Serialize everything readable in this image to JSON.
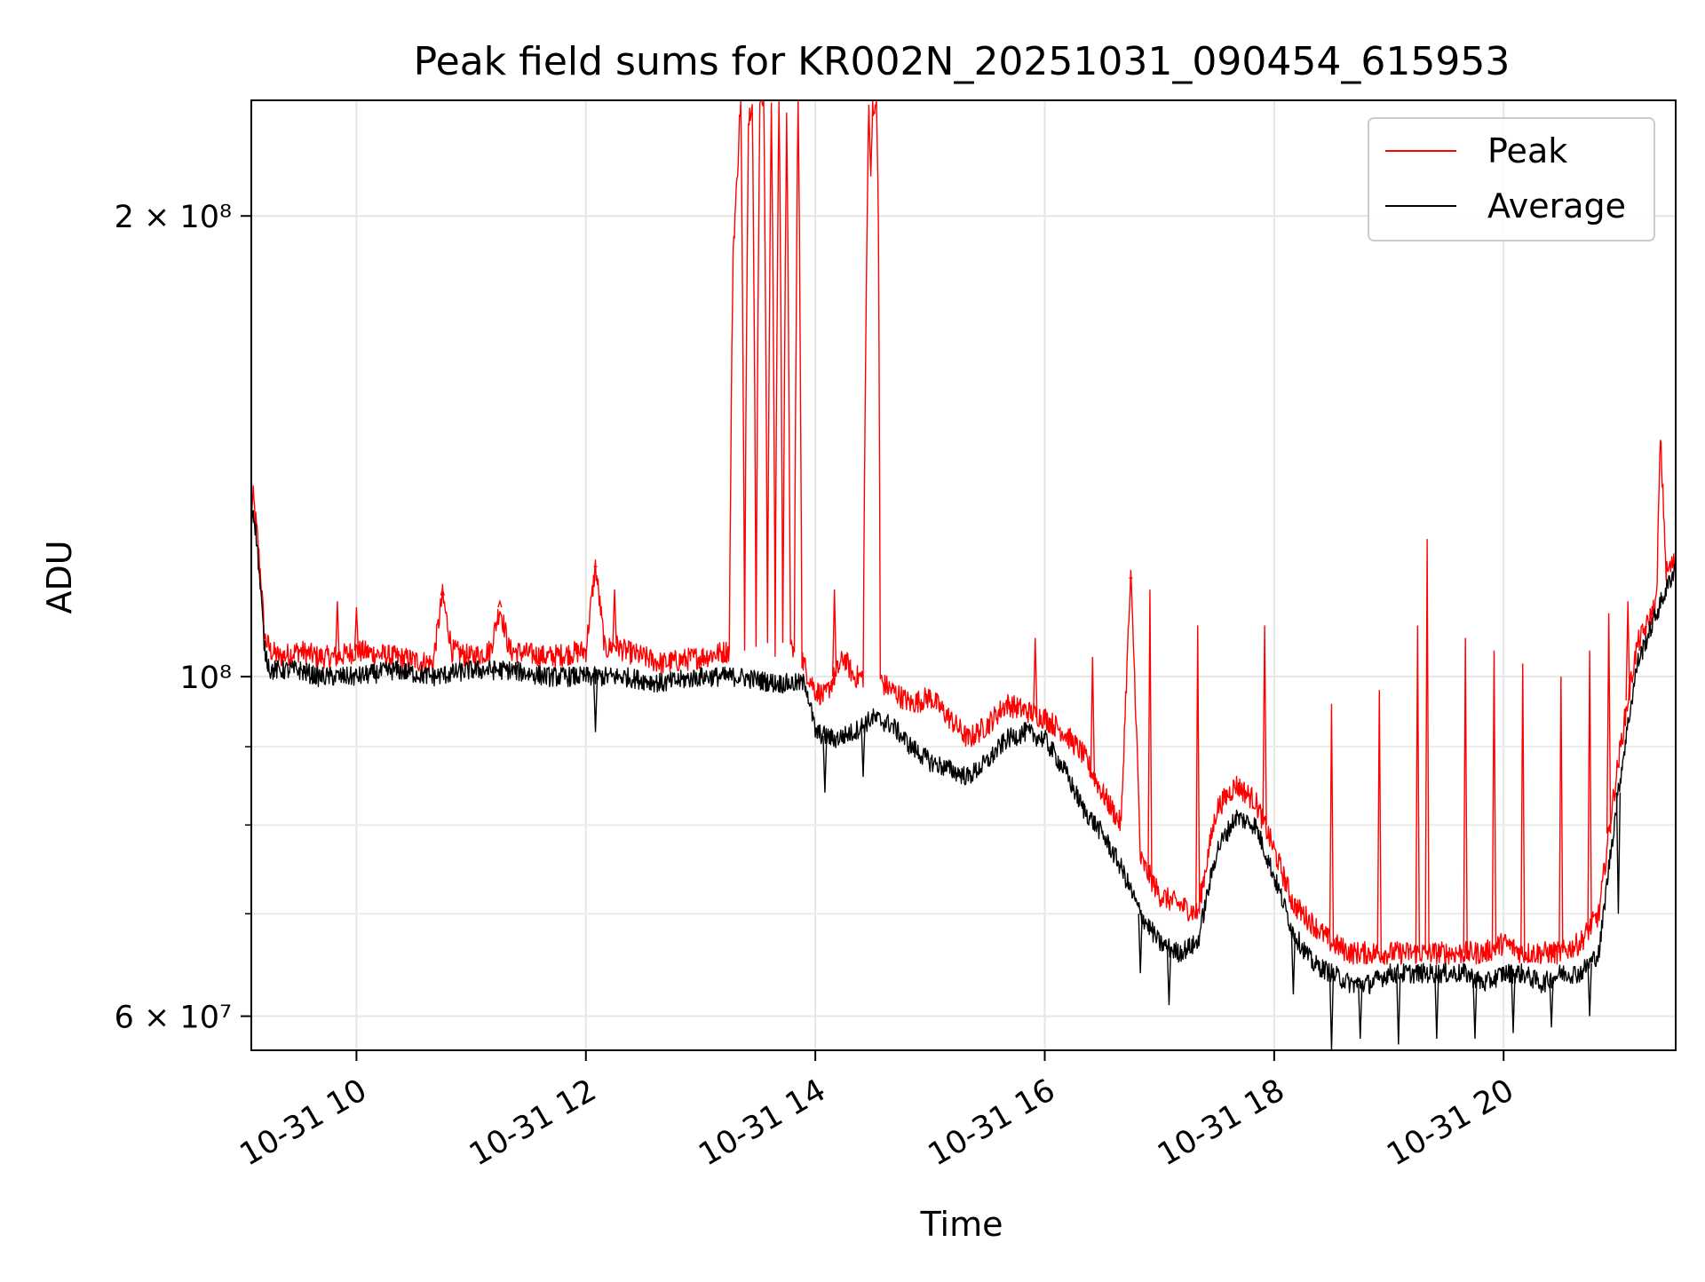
{
  "chart_data": {
    "type": "line",
    "title": "Peak field sums for KR002N_20251031_090454_615953",
    "xlabel": "Time",
    "ylabel": "ADU",
    "yscale": "log",
    "grid": true,
    "legend_position": "upper-right",
    "xlim": [
      "2025-10-31 09:05",
      "2025-10-31 21:30"
    ],
    "ylim": [
      57000000,
      238000000
    ],
    "x_ticks": [
      {
        "value": "2025-10-31 10:00",
        "label": "10-31 10"
      },
      {
        "value": "2025-10-31 12:00",
        "label": "10-31 12"
      },
      {
        "value": "2025-10-31 14:00",
        "label": "10-31 14"
      },
      {
        "value": "2025-10-31 16:00",
        "label": "10-31 16"
      },
      {
        "value": "2025-10-31 18:00",
        "label": "10-31 18"
      },
      {
        "value": "2025-10-31 20:00",
        "label": "10-31 20"
      }
    ],
    "y_major_ticks": [
      {
        "value": 60000000,
        "label": "6 × 10⁷"
      },
      {
        "value": 100000000,
        "label": "10⁸"
      },
      {
        "value": 200000000,
        "label": "2 × 10⁸"
      }
    ],
    "y_minor_ticks": [
      70000000,
      80000000,
      90000000
    ],
    "series": [
      {
        "name": "Peak",
        "color": "#ff0000",
        "x": [
          "2025-10-31 09:05",
          "2025-10-31 09:06",
          "2025-10-31 09:08",
          "2025-10-31 09:10",
          "2025-10-31 09:12",
          "2025-10-31 09:15",
          "2025-10-31 09:20",
          "2025-10-31 09:30",
          "2025-10-31 09:40",
          "2025-10-31 09:50",
          "2025-10-31 10:00",
          "2025-10-31 10:20",
          "2025-10-31 10:40",
          "2025-10-31 10:45",
          "2025-10-31 10:50",
          "2025-10-31 11:00",
          "2025-10-31 11:10",
          "2025-10-31 11:15",
          "2025-10-31 11:20",
          "2025-10-31 11:40",
          "2025-10-31 12:00",
          "2025-10-31 12:05",
          "2025-10-31 12:10",
          "2025-10-31 12:15",
          "2025-10-31 12:20",
          "2025-10-31 12:40",
          "2025-10-31 13:00",
          "2025-10-31 13:15",
          "2025-10-31 13:17",
          "2025-10-31 13:19",
          "2025-10-31 13:21",
          "2025-10-31 13:23",
          "2025-10-31 13:25",
          "2025-10-31 13:27",
          "2025-10-31 13:29",
          "2025-10-31 13:31",
          "2025-10-31 13:33",
          "2025-10-31 13:35",
          "2025-10-31 13:37",
          "2025-10-31 13:39",
          "2025-10-31 13:41",
          "2025-10-31 13:43",
          "2025-10-31 13:45",
          "2025-10-31 13:47",
          "2025-10-31 13:49",
          "2025-10-31 13:51",
          "2025-10-31 13:53",
          "2025-10-31 13:55",
          "2025-10-31 14:00",
          "2025-10-31 14:05",
          "2025-10-31 14:10",
          "2025-10-31 14:15",
          "2025-10-31 14:20",
          "2025-10-31 14:25",
          "2025-10-31 14:28",
          "2025-10-31 14:29",
          "2025-10-31 14:30",
          "2025-10-31 14:31",
          "2025-10-31 14:32",
          "2025-10-31 14:33",
          "2025-10-31 14:34",
          "2025-10-31 14:35",
          "2025-10-31 14:40",
          "2025-10-31 14:50",
          "2025-10-31 15:00",
          "2025-10-31 15:10",
          "2025-10-31 15:20",
          "2025-10-31 15:30",
          "2025-10-31 15:40",
          "2025-10-31 15:50",
          "2025-10-31 16:00",
          "2025-10-31 16:10",
          "2025-10-31 16:20",
          "2025-10-31 16:30",
          "2025-10-31 16:40",
          "2025-10-31 16:45",
          "2025-10-31 16:50",
          "2025-10-31 17:00",
          "2025-10-31 17:10",
          "2025-10-31 17:20",
          "2025-10-31 17:30",
          "2025-10-31 17:40",
          "2025-10-31 17:50",
          "2025-10-31 18:00",
          "2025-10-31 18:10",
          "2025-10-31 18:20",
          "2025-10-31 18:30",
          "2025-10-31 18:40",
          "2025-10-31 18:50",
          "2025-10-31 19:00",
          "2025-10-31 19:10",
          "2025-10-31 19:20",
          "2025-10-31 19:30",
          "2025-10-31 19:40",
          "2025-10-31 19:50",
          "2025-10-31 20:00",
          "2025-10-31 20:10",
          "2025-10-31 20:20",
          "2025-10-31 20:30",
          "2025-10-31 20:40",
          "2025-10-31 20:50",
          "2025-10-31 21:00",
          "2025-10-31 21:10",
          "2025-10-31 21:15",
          "2025-10-31 21:20",
          "2025-10-31 21:22",
          "2025-10-31 21:25",
          "2025-10-31 21:30"
        ],
        "y": [
          128000000,
          131000000,
          124000000,
          116000000,
          106000000,
          104000000,
          103000000,
          104000000,
          103000000,
          103000000,
          104000000,
          103000000,
          102000000,
          113000000,
          104000000,
          103000000,
          104000000,
          111000000,
          104000000,
          103000000,
          104000000,
          118000000,
          104000000,
          105000000,
          104000000,
          102000000,
          103000000,
          104000000,
          190000000,
          210000000,
          240000000,
          104000000,
          230000000,
          240000000,
          104000000,
          240000000,
          240000000,
          104000000,
          240000000,
          104000000,
          240000000,
          104000000,
          230000000,
          104000000,
          104000000,
          240000000,
          103000000,
          101000000,
          98000000,
          97000000,
          100000000,
          103000000,
          100000000,
          100000000,
          240000000,
          210000000,
          240000000,
          230000000,
          240000000,
          195000000,
          100000000,
          99000000,
          98000000,
          96000000,
          97000000,
          94000000,
          91000000,
          93000000,
          96000000,
          95000000,
          94000000,
          92000000,
          89000000,
          84000000,
          80000000,
          116000000,
          76000000,
          72000000,
          71000000,
          70000000,
          82000000,
          85000000,
          83000000,
          77000000,
          71000000,
          69000000,
          67000000,
          66000000,
          66000000,
          66000000,
          66000000,
          66000000,
          66000000,
          66000000,
          66000000,
          67000000,
          66000000,
          66000000,
          66000000,
          67000000,
          70000000,
          88000000,
          105000000,
          108000000,
          112000000,
          143000000,
          117000000,
          119000000
        ],
        "bursts": [
          {
            "x": "2025-10-31 09:50",
            "y": 112000000
          },
          {
            "x": "2025-10-31 10:00",
            "y": 111000000
          },
          {
            "x": "2025-10-31 10:45",
            "y": 114000000
          },
          {
            "x": "2025-10-31 11:15",
            "y": 112000000
          },
          {
            "x": "2025-10-31 12:05",
            "y": 118000000
          },
          {
            "x": "2025-10-31 12:15",
            "y": 114000000
          },
          {
            "x": "2025-10-31 14:10",
            "y": 114000000
          },
          {
            "x": "2025-10-31 15:55",
            "y": 106000000
          },
          {
            "x": "2025-10-31 16:25",
            "y": 103000000
          },
          {
            "x": "2025-10-31 16:45",
            "y": 116000000
          },
          {
            "x": "2025-10-31 16:55",
            "y": 114000000
          },
          {
            "x": "2025-10-31 17:20",
            "y": 108000000
          },
          {
            "x": "2025-10-31 17:55",
            "y": 108000000
          },
          {
            "x": "2025-10-31 18:30",
            "y": 96000000
          },
          {
            "x": "2025-10-31 18:55",
            "y": 98000000
          },
          {
            "x": "2025-10-31 19:15",
            "y": 108000000
          },
          {
            "x": "2025-10-31 19:20",
            "y": 123000000
          },
          {
            "x": "2025-10-31 19:40",
            "y": 106000000
          },
          {
            "x": "2025-10-31 19:55",
            "y": 104000000
          },
          {
            "x": "2025-10-31 20:10",
            "y": 102000000
          },
          {
            "x": "2025-10-31 20:30",
            "y": 100000000
          },
          {
            "x": "2025-10-31 20:45",
            "y": 104000000
          },
          {
            "x": "2025-10-31 20:55",
            "y": 110000000
          },
          {
            "x": "2025-10-31 21:05",
            "y": 112000000
          }
        ]
      },
      {
        "name": "Average",
        "color": "#000000",
        "x": [
          "2025-10-31 09:05",
          "2025-10-31 09:06",
          "2025-10-31 09:08",
          "2025-10-31 09:10",
          "2025-10-31 09:12",
          "2025-10-31 09:15",
          "2025-10-31 09:20",
          "2025-10-31 09:30",
          "2025-10-31 09:40",
          "2025-10-31 09:50",
          "2025-10-31 10:00",
          "2025-10-31 10:20",
          "2025-10-31 10:40",
          "2025-10-31 11:00",
          "2025-10-31 11:20",
          "2025-10-31 11:40",
          "2025-10-31 12:00",
          "2025-10-31 12:20",
          "2025-10-31 12:40",
          "2025-10-31 13:00",
          "2025-10-31 13:20",
          "2025-10-31 13:40",
          "2025-10-31 13:55",
          "2025-10-31 14:00",
          "2025-10-31 14:10",
          "2025-10-31 14:20",
          "2025-10-31 14:30",
          "2025-10-31 14:40",
          "2025-10-31 14:50",
          "2025-10-31 15:00",
          "2025-10-31 15:10",
          "2025-10-31 15:20",
          "2025-10-31 15:30",
          "2025-10-31 15:40",
          "2025-10-31 15:50",
          "2025-10-31 16:00",
          "2025-10-31 16:10",
          "2025-10-31 16:20",
          "2025-10-31 16:30",
          "2025-10-31 16:40",
          "2025-10-31 16:50",
          "2025-10-31 17:00",
          "2025-10-31 17:10",
          "2025-10-31 17:20",
          "2025-10-31 17:30",
          "2025-10-31 17:40",
          "2025-10-31 17:50",
          "2025-10-31 18:00",
          "2025-10-31 18:10",
          "2025-10-31 18:20",
          "2025-10-31 18:30",
          "2025-10-31 18:40",
          "2025-10-31 18:50",
          "2025-10-31 19:00",
          "2025-10-31 19:10",
          "2025-10-31 19:20",
          "2025-10-31 19:30",
          "2025-10-31 19:40",
          "2025-10-31 19:50",
          "2025-10-31 20:00",
          "2025-10-31 20:10",
          "2025-10-31 20:20",
          "2025-10-31 20:30",
          "2025-10-31 20:40",
          "2025-10-31 20:50",
          "2025-10-31 21:00",
          "2025-10-31 21:10",
          "2025-10-31 21:20",
          "2025-10-31 21:30"
        ],
        "y": [
          126000000,
          129000000,
          122000000,
          113000000,
          104000000,
          101000000,
          101000000,
          101000000,
          100000000,
          100000000,
          100000000,
          101000000,
          100000000,
          101000000,
          101000000,
          100000000,
          100000000,
          100000000,
          99000000,
          100000000,
          100000000,
          99000000,
          99000000,
          92000000,
          91000000,
          92000000,
          94000000,
          93000000,
          90000000,
          88000000,
          87000000,
          86000000,
          88000000,
          91000000,
          92000000,
          91000000,
          87000000,
          82000000,
          79000000,
          75000000,
          70000000,
          67000000,
          66000000,
          67000000,
          77000000,
          81000000,
          80000000,
          74000000,
          68000000,
          65000000,
          64000000,
          63000000,
          63000000,
          64000000,
          64000000,
          64000000,
          64000000,
          64000000,
          63000000,
          64000000,
          64000000,
          63000000,
          64000000,
          64000000,
          66000000,
          84000000,
          102000000,
          110000000,
          118000000
        ],
        "dips": [
          {
            "x": "2025-10-31 12:05",
            "y": 92000000
          },
          {
            "x": "2025-10-31 14:05",
            "y": 84000000
          },
          {
            "x": "2025-10-31 14:25",
            "y": 86000000
          },
          {
            "x": "2025-10-31 16:50",
            "y": 64000000
          },
          {
            "x": "2025-10-31 17:05",
            "y": 61000000
          },
          {
            "x": "2025-10-31 18:10",
            "y": 62000000
          },
          {
            "x": "2025-10-31 18:30",
            "y": 57000000
          },
          {
            "x": "2025-10-31 18:45",
            "y": 58000000
          },
          {
            "x": "2025-10-31 19:05",
            "y": 57500000
          },
          {
            "x": "2025-10-31 19:25",
            "y": 58000000
          },
          {
            "x": "2025-10-31 19:45",
            "y": 58000000
          },
          {
            "x": "2025-10-31 20:05",
            "y": 58500000
          },
          {
            "x": "2025-10-31 20:25",
            "y": 59000000
          },
          {
            "x": "2025-10-31 20:45",
            "y": 60000000
          },
          {
            "x": "2025-10-31 21:00",
            "y": 70000000
          }
        ]
      }
    ]
  }
}
